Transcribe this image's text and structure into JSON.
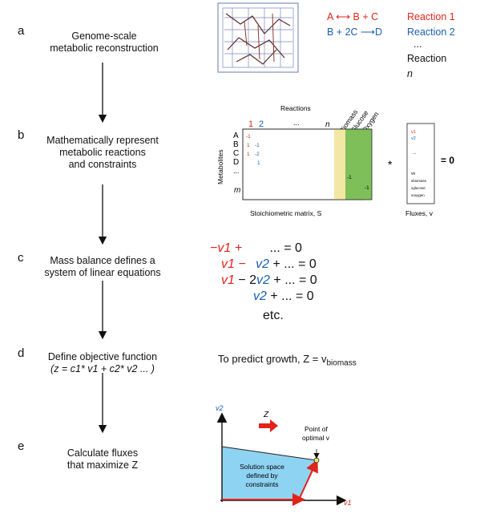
{
  "steps": [
    {
      "letter": "a",
      "lines": [
        "Genome-scale",
        "metabolic reconstruction"
      ]
    },
    {
      "letter": "b",
      "lines": [
        "Mathematically represent",
        "metabolic reactions",
        "and constraints"
      ]
    },
    {
      "letter": "c",
      "lines": [
        "Mass balance defines a",
        "system of linear equations"
      ]
    },
    {
      "letter": "d",
      "lines": [
        "Define objective function"
      ],
      "formula": "(z = c1* v1 + c2* v2 ... )"
    },
    {
      "letter": "e",
      "lines": [
        "Calculate fluxes",
        "that maximize Z"
      ]
    }
  ],
  "reactions": {
    "r1_left": "A",
    "r1_right": "B + C",
    "r1_name": "Reaction 1",
    "r2_left": "B + 2C",
    "r2_right": "D",
    "r2_name": "Reaction 2",
    "dots": "...",
    "rn_name": "Reaction n"
  },
  "matrix": {
    "reactions_label": "Reactions",
    "col_labels": [
      "1",
      "2",
      "...",
      "n"
    ],
    "exchange_labels": [
      "Biomass",
      "Glucose",
      "Oxygen"
    ],
    "row_labels": [
      "A",
      "B",
      "C",
      "D",
      "...",
      "m"
    ],
    "metabolites_label": "Metabolites",
    "entries_col1": [
      "-1",
      "1",
      "1"
    ],
    "entries_col2": [
      "-1",
      "-2",
      "1"
    ],
    "green_entries": [
      "-1",
      "-1"
    ],
    "caption": "Stoichiometric matrix, S",
    "times": "*",
    "equals": "= 0",
    "flux_items": [
      "v1",
      "v2",
      "...",
      "vn",
      "vbiomass",
      "vglucose",
      "voxygen"
    ],
    "flux_caption": "Fluxes, v"
  },
  "equations": {
    "line1_red": "−v1 +",
    "line1_rest": "... = 0",
    "line2_red": "v1 −",
    "line2_blue": "v2",
    "line2_rest": "+ ... = 0",
    "line3_red": "v1",
    "line3_mid": "− 2",
    "line3_blue": "v2",
    "line3_rest": "+ ... = 0",
    "line4_blue": "v2",
    "line4_rest": "+ ... = 0",
    "etc": "etc."
  },
  "objective": {
    "prefix": "To predict growth, Z = v",
    "sub": "biomass"
  },
  "plot": {
    "y_axis": "v2",
    "x_axis": "v1",
    "z_label": "Z",
    "optimal_label_1": "Point of",
    "optimal_label_2": "optimal v",
    "solution_lines": [
      "Solution space",
      "defined by",
      "constraints"
    ]
  },
  "colors": {
    "red": "#e2231a",
    "blue": "#1a5fb4",
    "biomass": "#f3e7a6",
    "green": "#7fbf5a",
    "solution": "#8fd3f3"
  }
}
